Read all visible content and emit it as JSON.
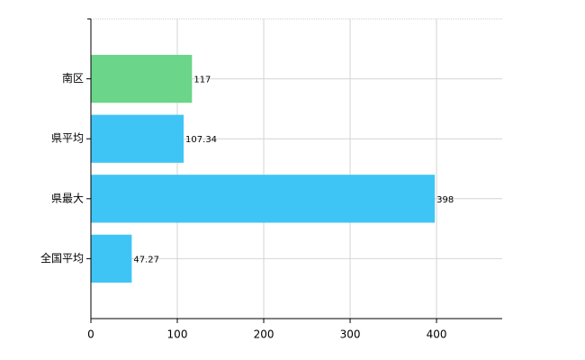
{
  "chart_data": {
    "type": "hbar",
    "categories": [
      "南区",
      "県平均",
      "県最大",
      "全国平均"
    ],
    "values": [
      117,
      107.34,
      398,
      47.27
    ],
    "colors": [
      "#6bd58a",
      "#3ec5f5",
      "#3ec5f5",
      "#3ec5f5"
    ],
    "xlim": [
      0,
      476
    ],
    "xticks": [
      0,
      100,
      200,
      300,
      400
    ],
    "grid": true
  }
}
